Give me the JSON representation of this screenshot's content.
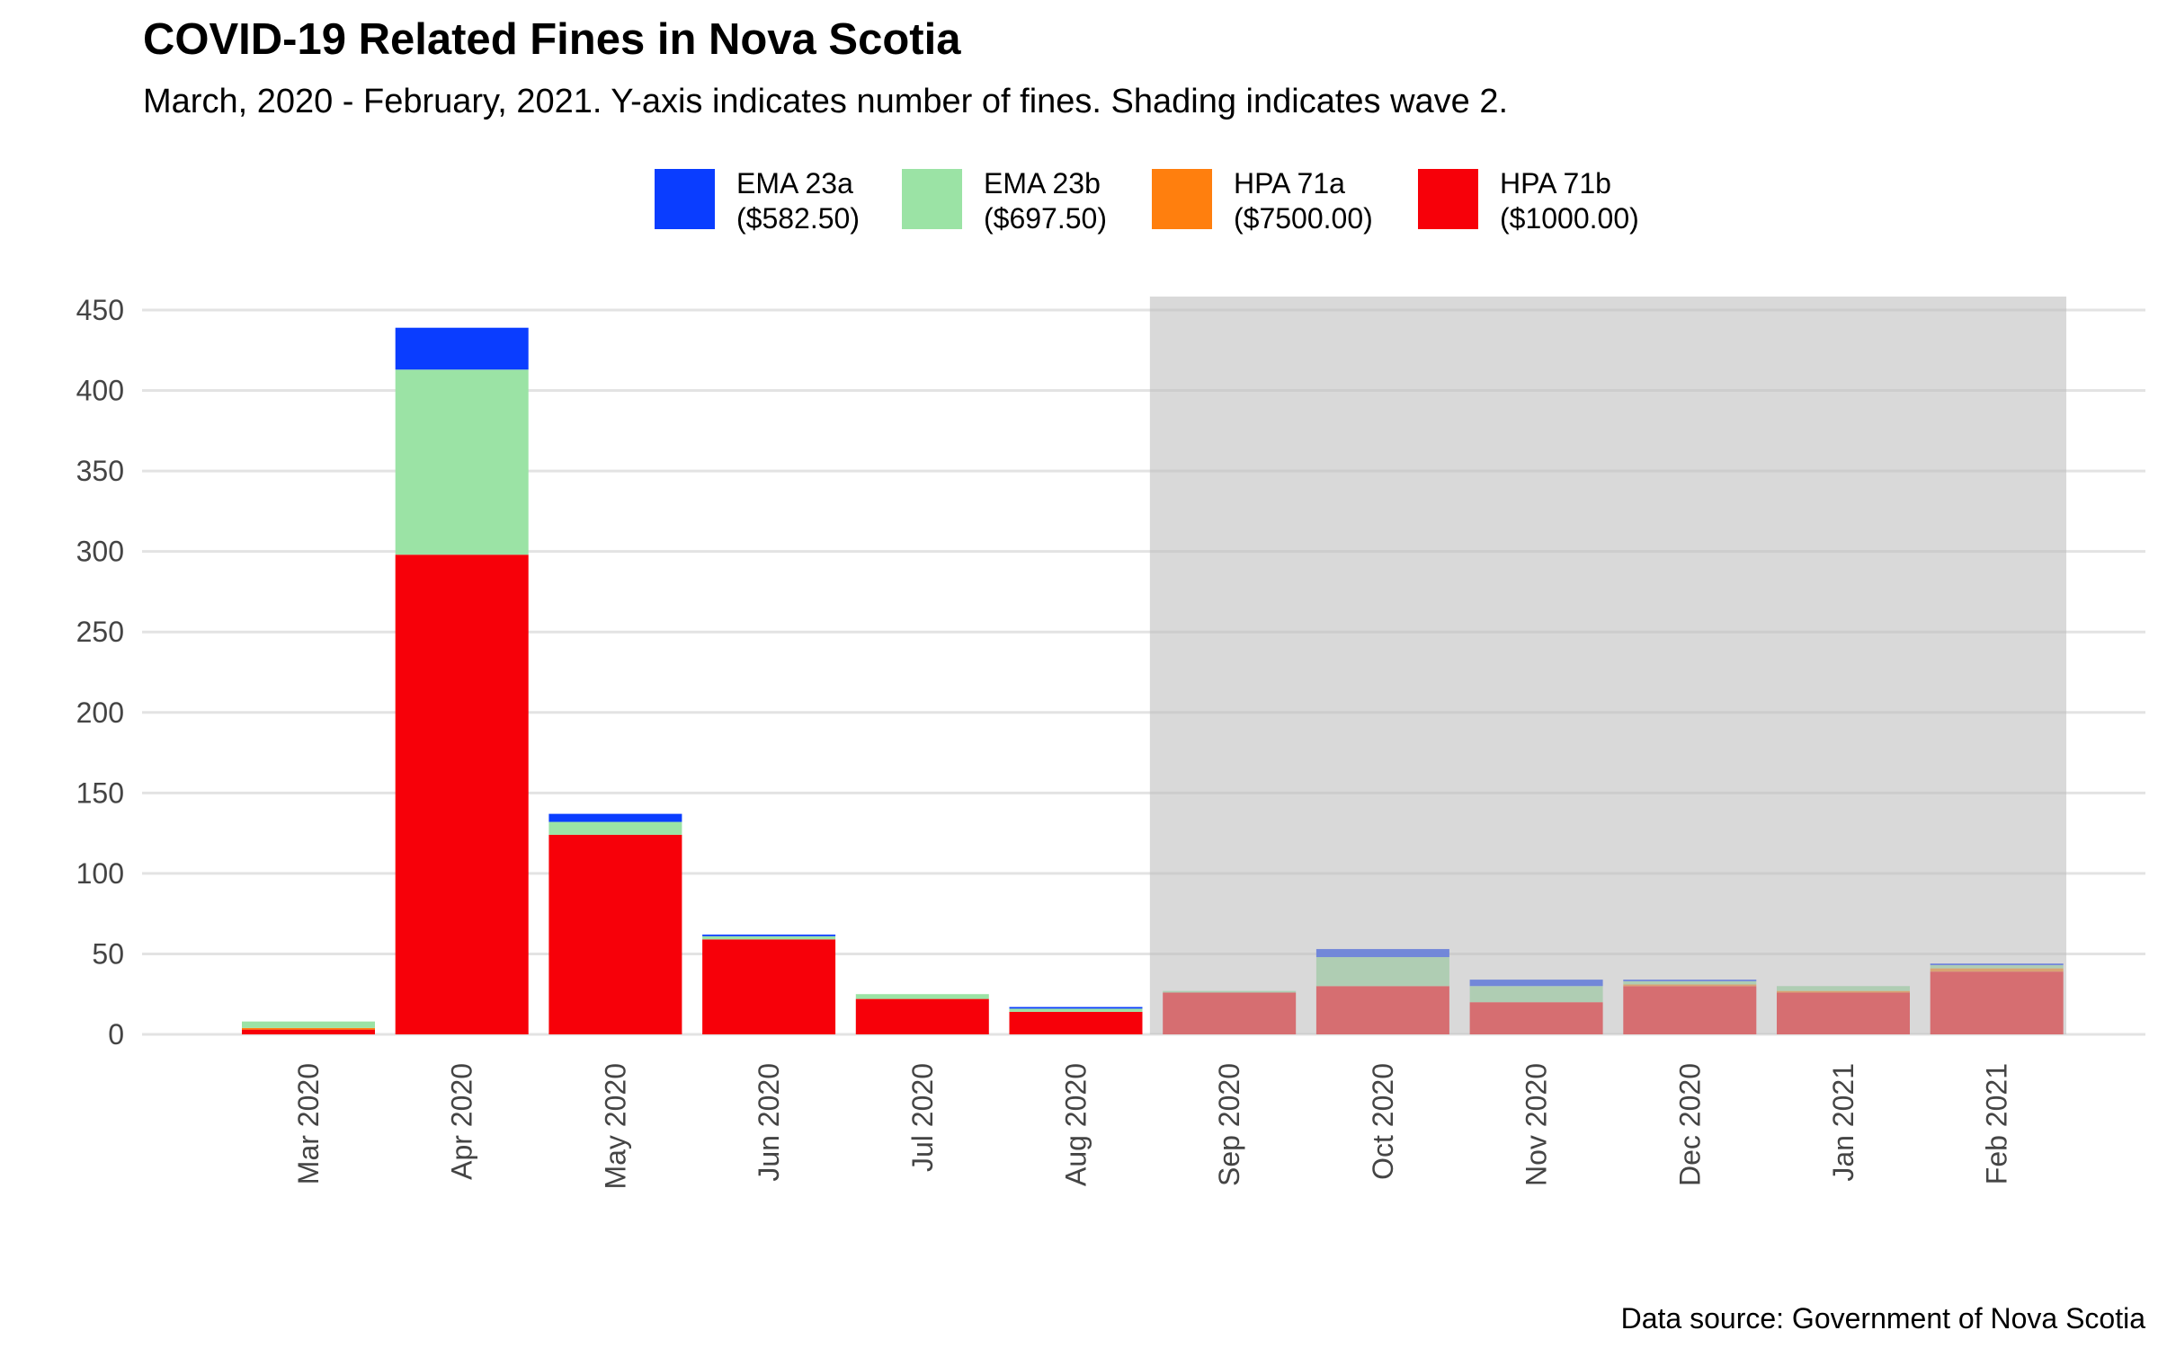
{
  "chart_data": {
    "type": "bar",
    "stacked": true,
    "title": "COVID-19 Related Fines in Nova Scotia",
    "subtitle": "March, 2020 - February, 2021. Y-axis indicates number of fines. Shading indicates wave 2.",
    "caption": "Data source: Government of Nova Scotia",
    "xlabel": "",
    "ylabel": "",
    "ylim": [
      0,
      450
    ],
    "yticks": [
      0,
      50,
      100,
      150,
      200,
      250,
      300,
      350,
      400,
      450
    ],
    "grid": true,
    "legend_position": "top",
    "categories": [
      "Mar 2020",
      "Apr 2020",
      "May 2020",
      "Jun 2020",
      "Jul 2020",
      "Aug 2020",
      "Sep 2020",
      "Oct 2020",
      "Nov 2020",
      "Dec 2020",
      "Jan 2021",
      "Feb 2021"
    ],
    "series": [
      {
        "name": "HPA 71b",
        "label_line1": "HPA 71b",
        "label_line2": "($1000.00)",
        "color": "#f70009",
        "values": [
          3,
          298,
          124,
          59,
          22,
          14,
          26,
          30,
          20,
          30,
          26,
          39
        ]
      },
      {
        "name": "HPA 71a",
        "label_line1": "HPA 71a",
        "label_line2": "($7500.00)",
        "color": "#ff7f0e",
        "values": [
          1,
          0,
          0,
          0,
          0,
          0,
          0,
          0,
          0,
          1,
          1,
          2
        ]
      },
      {
        "name": "EMA 23b",
        "label_line1": "EMA 23b",
        "label_line2": "($697.50)",
        "color": "#9be3a5",
        "values": [
          4,
          115,
          8,
          2,
          3,
          2,
          1,
          18,
          10,
          2,
          3,
          2
        ]
      },
      {
        "name": "EMA 23a",
        "label_line1": "EMA 23a",
        "label_line2": "($582.50)",
        "color": "#0a3dff",
        "values": [
          0,
          26,
          5,
          1,
          0,
          1,
          0,
          5,
          4,
          1,
          0,
          1
        ]
      }
    ],
    "legend_order": [
      "EMA 23a",
      "EMA 23b",
      "HPA 71a",
      "HPA 71b"
    ],
    "shaded_region": {
      "label": "wave 2",
      "from_category": "Sep 2020",
      "to_category": "Feb 2021",
      "color": "#bdbdbd",
      "opacity": 0.58
    }
  }
}
